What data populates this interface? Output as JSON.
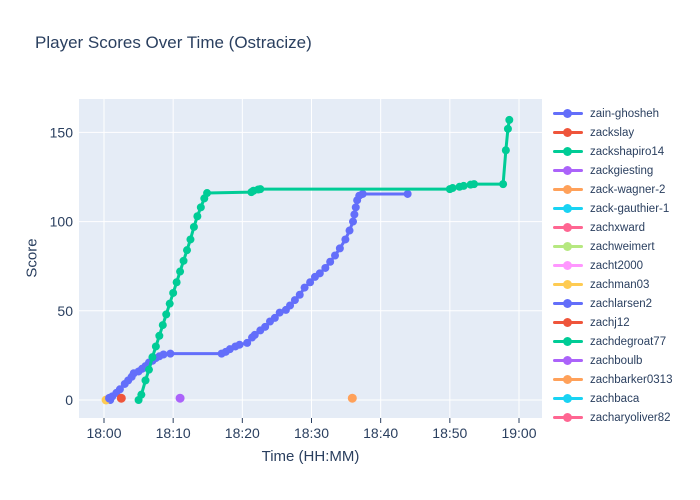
{
  "title": "Player Scores Over Time (Ostracize)",
  "colors": {
    "text": "#2a3f5f",
    "grid": "#ffffff",
    "plot_bg": "#e5ecf6",
    "paper_bg": "#ffffff"
  },
  "chart_data": {
    "type": "line",
    "title": "Player Scores Over Time (Ostracize)",
    "xlabel": "Time (HH:MM)",
    "ylabel": "Score",
    "x_tick_labels": [
      "18:00",
      "18:10",
      "18:20",
      "18:30",
      "18:40",
      "18:50",
      "19:00"
    ],
    "x_tick_minutes": [
      0,
      10,
      20,
      30,
      40,
      50,
      60
    ],
    "y_ticks": [
      0,
      50,
      100,
      150
    ],
    "x_units": "minutes after 18:00",
    "x_range_minutes": [
      -3.6,
      63.3
    ],
    "y_range": [
      -10,
      169
    ],
    "grid": true,
    "legend_position": "right",
    "legend": [
      {
        "label": "zain-ghosheh",
        "color": "#636efa"
      },
      {
        "label": "zackslay",
        "color": "#ef553b"
      },
      {
        "label": "zackshapiro14",
        "color": "#00cc96"
      },
      {
        "label": "zackgiesting",
        "color": "#ab63fa"
      },
      {
        "label": "zack-wagner-2",
        "color": "#ffa15a"
      },
      {
        "label": "zack-gauthier-1",
        "color": "#19d3f3"
      },
      {
        "label": "zachxward",
        "color": "#ff6692"
      },
      {
        "label": "zachweimert",
        "color": "#b6e880"
      },
      {
        "label": "zacht2000",
        "color": "#ff97ff"
      },
      {
        "label": "zachman03",
        "color": "#fecb52"
      },
      {
        "label": "zachlarsen2",
        "color": "#636efa"
      },
      {
        "label": "zachj12",
        "color": "#ef553b"
      },
      {
        "label": "zachdegroat77",
        "color": "#00cc96"
      },
      {
        "label": "zachboulb",
        "color": "#ab63fa"
      },
      {
        "label": "zachbarker0313",
        "color": "#ffa15a"
      },
      {
        "label": "zachbaca",
        "color": "#19d3f3"
      },
      {
        "label": "zacharyoliver82",
        "color": "#ff6692"
      }
    ],
    "series": [
      {
        "name": "zain-ghosheh",
        "color": "#636efa",
        "mode": "lines+markers",
        "points": [
          [
            0.9,
            0
          ],
          [
            1.2,
            2
          ],
          [
            1.8,
            4
          ],
          [
            2.3,
            6
          ],
          [
            3,
            9
          ],
          [
            3.5,
            11
          ],
          [
            4,
            13
          ],
          [
            4.3,
            15
          ],
          [
            5,
            16
          ],
          [
            5.5,
            17.5
          ],
          [
            6,
            19
          ],
          [
            6.5,
            21
          ],
          [
            7,
            22
          ],
          [
            7.5,
            23.5
          ],
          [
            8,
            24.5
          ],
          [
            8.6,
            25.5
          ],
          [
            9.6,
            26
          ],
          [
            17,
            26
          ],
          [
            17.6,
            27
          ],
          [
            18.2,
            28.5
          ],
          [
            19,
            30
          ],
          [
            19.6,
            31
          ],
          [
            20.7,
            32
          ],
          [
            21.4,
            35
          ],
          [
            21.8,
            36.5
          ],
          [
            22.6,
            39
          ],
          [
            23.3,
            41
          ],
          [
            24,
            44
          ],
          [
            24.7,
            46
          ],
          [
            25.4,
            49
          ],
          [
            26.3,
            50.5
          ],
          [
            26.9,
            53
          ],
          [
            27.6,
            56
          ],
          [
            28.3,
            59
          ],
          [
            29,
            63
          ],
          [
            29.8,
            66
          ],
          [
            30.5,
            69
          ],
          [
            31.2,
            71
          ],
          [
            32,
            74
          ],
          [
            32.7,
            77.5
          ],
          [
            33.4,
            81
          ],
          [
            34.1,
            85
          ],
          [
            34.9,
            90
          ],
          [
            35.5,
            95
          ],
          [
            36,
            100
          ],
          [
            36.2,
            104
          ],
          [
            36.4,
            108
          ],
          [
            36.6,
            112
          ],
          [
            36.9,
            114.5
          ],
          [
            37.4,
            115.5
          ],
          [
            43.9,
            115.5
          ]
        ]
      },
      {
        "name": "zackslay",
        "color": "#ef553b",
        "mode": "markers",
        "points": [
          [
            2.5,
            1
          ]
        ]
      },
      {
        "name": "zackshapiro14",
        "color": "#00cc96",
        "mode": "lines+markers",
        "points": [
          [
            5,
            0
          ],
          [
            5.4,
            3
          ],
          [
            6,
            11
          ],
          [
            6.5,
            17
          ],
          [
            7,
            24
          ],
          [
            7.5,
            30
          ],
          [
            8,
            36
          ],
          [
            8.5,
            42
          ],
          [
            9,
            48
          ],
          [
            9.5,
            54
          ],
          [
            10,
            60
          ],
          [
            10.5,
            66
          ],
          [
            11,
            72
          ],
          [
            11.5,
            78
          ],
          [
            12,
            84
          ],
          [
            12.5,
            90
          ],
          [
            13,
            97
          ],
          [
            13.5,
            103
          ],
          [
            14,
            108
          ],
          [
            14.5,
            113
          ],
          [
            14.9,
            116
          ],
          [
            21.3,
            116.5
          ],
          [
            21.6,
            117.3
          ],
          [
            22.3,
            118
          ],
          [
            22.6,
            118.2
          ],
          [
            50,
            118.2
          ],
          [
            50.4,
            118.8
          ],
          [
            51.4,
            119.5
          ],
          [
            52,
            120
          ],
          [
            53,
            120.7
          ],
          [
            53.5,
            121
          ],
          [
            57.7,
            121
          ],
          [
            58.1,
            140
          ],
          [
            58.4,
            152
          ],
          [
            58.6,
            157
          ]
        ]
      },
      {
        "name": "zackgiesting",
        "color": "#ab63fa",
        "mode": "markers",
        "points": [
          [
            11,
            1
          ]
        ]
      },
      {
        "name": "zack-wagner-2",
        "color": "#ffa15a",
        "mode": "markers",
        "points": [
          [
            35.9,
            1
          ]
        ]
      },
      {
        "name": "zachman03",
        "color": "#fecb52",
        "mode": "markers",
        "points": [
          [
            0.3,
            0
          ]
        ]
      },
      {
        "name": "zachlarsen2",
        "color": "#636efa",
        "mode": "markers",
        "points": [
          [
            0.8,
            1
          ]
        ]
      }
    ]
  }
}
